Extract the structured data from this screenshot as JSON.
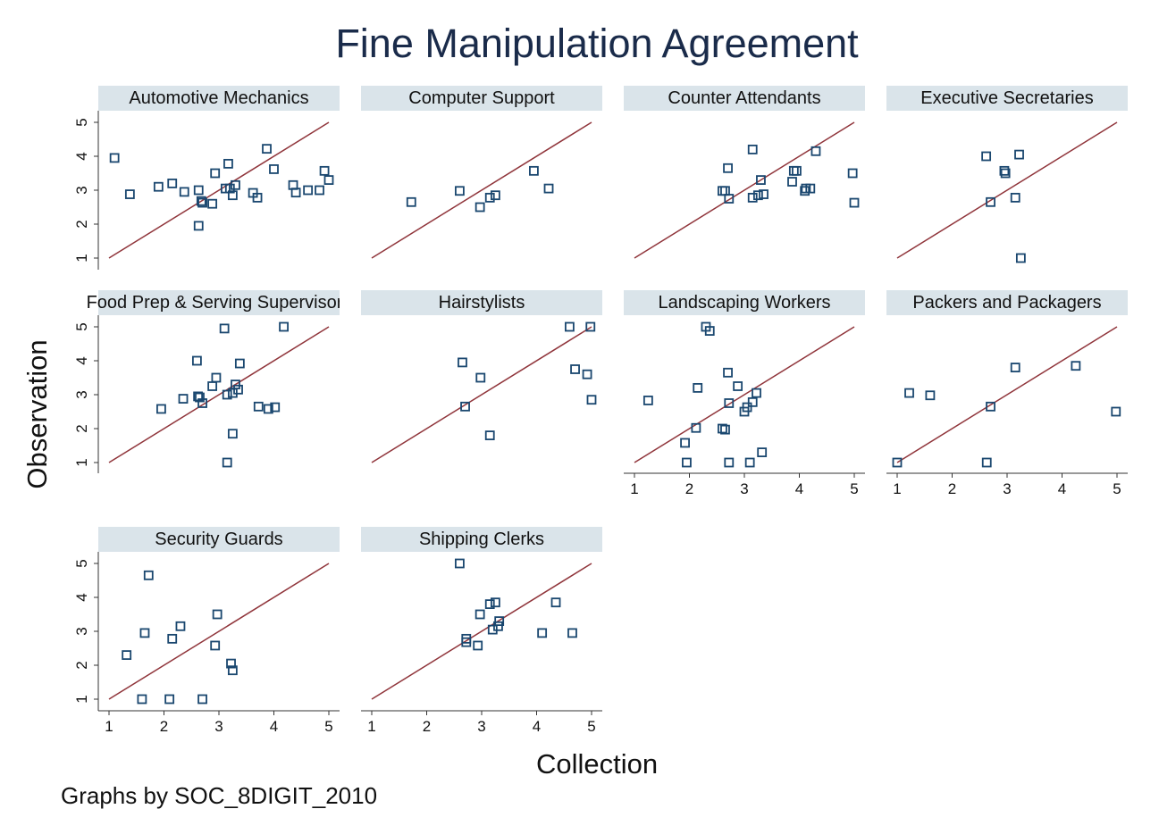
{
  "chart_data": {
    "type": "scatter",
    "title": "Fine Manipulation Agreement",
    "xlabel": "Collection",
    "ylabel": "Observation",
    "note": "Graphs by SOC_8DIGIT_2010",
    "xlim": [
      1,
      5
    ],
    "ylim": [
      1,
      5
    ],
    "ticks": [
      "1",
      "2",
      "3",
      "4",
      "5"
    ],
    "reference_line": {
      "type": "y = x",
      "from": [
        1,
        1
      ],
      "to": [
        5,
        5
      ]
    },
    "grid": false,
    "marker": "hollow-square",
    "colors": {
      "title": "#1a2b4a",
      "marker": "#1a476f",
      "line": "#90353b",
      "strip": "#dae4ea",
      "background": "#ffffff"
    },
    "panels": [
      {
        "name": "Automotive Mechanics",
        "points": [
          [
            1.1,
            3.95
          ],
          [
            1.38,
            2.88
          ],
          [
            1.9,
            3.1
          ],
          [
            2.15,
            3.2
          ],
          [
            2.37,
            2.95
          ],
          [
            2.63,
            3.0
          ],
          [
            2.63,
            1.95
          ],
          [
            2.68,
            2.68
          ],
          [
            2.7,
            2.63
          ],
          [
            2.88,
            2.6
          ],
          [
            2.93,
            3.5
          ],
          [
            3.12,
            3.05
          ],
          [
            3.17,
            3.78
          ],
          [
            3.2,
            3.05
          ],
          [
            3.25,
            2.85
          ],
          [
            3.3,
            3.15
          ],
          [
            3.62,
            2.92
          ],
          [
            3.7,
            2.78
          ],
          [
            3.87,
            4.22
          ],
          [
            4.0,
            3.62
          ],
          [
            4.35,
            3.15
          ],
          [
            4.4,
            2.93
          ],
          [
            4.62,
            3.0
          ],
          [
            4.83,
            3.0
          ],
          [
            4.92,
            3.57
          ],
          [
            5.0,
            3.3
          ]
        ]
      },
      {
        "name": "Computer Support",
        "points": [
          [
            1.72,
            2.65
          ],
          [
            2.6,
            2.98
          ],
          [
            2.97,
            2.5
          ],
          [
            3.15,
            2.78
          ],
          [
            3.25,
            2.85
          ],
          [
            3.95,
            3.57
          ],
          [
            4.22,
            3.05
          ]
        ]
      },
      {
        "name": "Counter Attendants",
        "points": [
          [
            2.6,
            2.98
          ],
          [
            2.65,
            2.98
          ],
          [
            2.7,
            3.65
          ],
          [
            2.72,
            2.75
          ],
          [
            3.15,
            4.2
          ],
          [
            3.15,
            2.78
          ],
          [
            3.25,
            2.85
          ],
          [
            3.3,
            3.3
          ],
          [
            3.35,
            2.88
          ],
          [
            3.87,
            3.25
          ],
          [
            3.9,
            3.57
          ],
          [
            3.95,
            3.57
          ],
          [
            4.1,
            2.98
          ],
          [
            4.12,
            3.05
          ],
          [
            4.2,
            3.05
          ],
          [
            4.3,
            4.15
          ],
          [
            4.97,
            3.5
          ],
          [
            5.0,
            2.63
          ]
        ]
      },
      {
        "name": "Executive Secretaries",
        "points": [
          [
            2.62,
            4.0
          ],
          [
            2.7,
            2.65
          ],
          [
            2.95,
            3.57
          ],
          [
            2.97,
            3.5
          ],
          [
            3.15,
            2.78
          ],
          [
            3.22,
            4.05
          ],
          [
            3.25,
            1.0
          ]
        ]
      },
      {
        "name": "Food Prep & Serving Supervisors",
        "points": [
          [
            1.95,
            2.58
          ],
          [
            2.35,
            2.88
          ],
          [
            2.6,
            4.0
          ],
          [
            2.62,
            2.95
          ],
          [
            2.65,
            2.92
          ],
          [
            2.7,
            2.75
          ],
          [
            2.88,
            3.25
          ],
          [
            2.95,
            3.5
          ],
          [
            3.1,
            4.95
          ],
          [
            3.15,
            1.0
          ],
          [
            3.15,
            3.0
          ],
          [
            3.25,
            3.05
          ],
          [
            3.25,
            1.85
          ],
          [
            3.3,
            3.3
          ],
          [
            3.35,
            3.15
          ],
          [
            3.38,
            3.92
          ],
          [
            3.72,
            2.65
          ],
          [
            3.9,
            2.58
          ],
          [
            4.02,
            2.63
          ],
          [
            4.18,
            5.0
          ]
        ]
      },
      {
        "name": "Hairstylists",
        "points": [
          [
            2.65,
            3.95
          ],
          [
            2.7,
            2.65
          ],
          [
            2.98,
            3.5
          ],
          [
            3.15,
            1.8
          ],
          [
            4.6,
            5.0
          ],
          [
            4.7,
            3.75
          ],
          [
            4.92,
            3.6
          ],
          [
            4.98,
            5.0
          ],
          [
            5.0,
            2.85
          ]
        ]
      },
      {
        "name": "Landscaping Workers",
        "points": [
          [
            1.25,
            2.83
          ],
          [
            1.92,
            1.58
          ],
          [
            1.95,
            1.0
          ],
          [
            2.12,
            2.02
          ],
          [
            2.15,
            3.2
          ],
          [
            2.3,
            5.0
          ],
          [
            2.37,
            4.88
          ],
          [
            2.6,
            2.0
          ],
          [
            2.65,
            1.97
          ],
          [
            2.7,
            3.65
          ],
          [
            2.72,
            2.75
          ],
          [
            2.72,
            1.0
          ],
          [
            2.88,
            3.25
          ],
          [
            3.0,
            2.5
          ],
          [
            3.05,
            2.63
          ],
          [
            3.1,
            1.0
          ],
          [
            3.15,
            2.78
          ],
          [
            3.22,
            3.05
          ],
          [
            3.32,
            1.3
          ]
        ]
      },
      {
        "name": "Packers and Packagers",
        "points": [
          [
            1.0,
            1.0
          ],
          [
            1.22,
            3.05
          ],
          [
            1.6,
            2.98
          ],
          [
            2.63,
            1.0
          ],
          [
            2.7,
            2.65
          ],
          [
            3.15,
            3.8
          ],
          [
            4.25,
            3.85
          ],
          [
            4.98,
            2.5
          ]
        ]
      },
      {
        "name": "Security Guards",
        "points": [
          [
            1.32,
            2.3
          ],
          [
            1.6,
            1.0
          ],
          [
            1.65,
            2.95
          ],
          [
            1.72,
            4.65
          ],
          [
            2.1,
            1.0
          ],
          [
            2.15,
            2.78
          ],
          [
            2.3,
            3.15
          ],
          [
            2.7,
            1.0
          ],
          [
            2.93,
            2.58
          ],
          [
            2.97,
            3.5
          ],
          [
            3.22,
            2.05
          ],
          [
            3.25,
            1.85
          ]
        ]
      },
      {
        "name": "Shipping Clerks",
        "points": [
          [
            2.6,
            5.0
          ],
          [
            2.72,
            2.68
          ],
          [
            2.72,
            2.78
          ],
          [
            2.93,
            2.58
          ],
          [
            2.97,
            3.5
          ],
          [
            3.15,
            3.8
          ],
          [
            3.2,
            3.05
          ],
          [
            3.25,
            3.85
          ],
          [
            3.3,
            3.15
          ],
          [
            3.32,
            3.3
          ],
          [
            4.1,
            2.95
          ],
          [
            4.35,
            3.85
          ],
          [
            4.65,
            2.95
          ]
        ]
      }
    ]
  }
}
